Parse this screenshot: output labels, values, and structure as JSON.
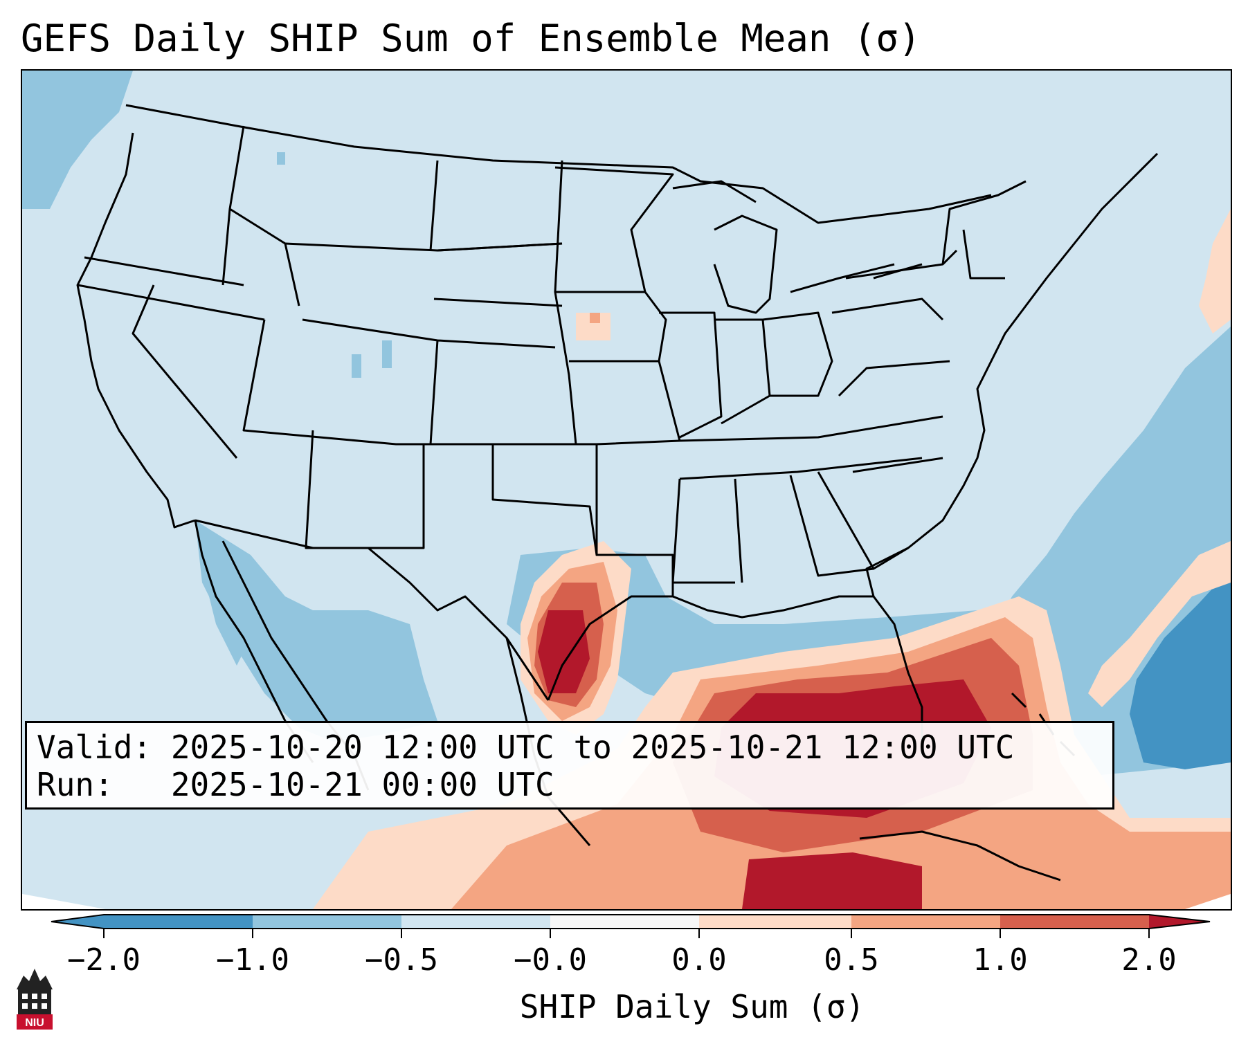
{
  "title": "GEFS Daily SHIP Sum of Ensemble Mean (σ)",
  "info": {
    "valid_line": "Valid: 2025-10-20 12:00 UTC to 2025-10-21 12:00 UTC",
    "run_line": "Run:   2025-10-21 00:00 UTC"
  },
  "colorbar": {
    "label": "SHIP Daily Sum (σ)",
    "ticks": [
      "−2.0",
      "−1.0",
      "−0.5",
      "−0.0",
      "0.0",
      "0.5",
      "1.0",
      "2.0"
    ],
    "colors": [
      "#4393c3",
      "#92c5de",
      "#d1e5f0",
      "#f7f7f7",
      "#fddbc7",
      "#f4a582",
      "#d6604d",
      "#b2182b"
    ]
  },
  "logo": {
    "text": "NIU"
  },
  "map": {
    "region": "CONUS",
    "field": "SHIP daily sum anomaly",
    "features": [
      "state-borders",
      "coastlines",
      "great-lakes",
      "gulf-of-mexico",
      "atlantic-ocean"
    ]
  }
}
